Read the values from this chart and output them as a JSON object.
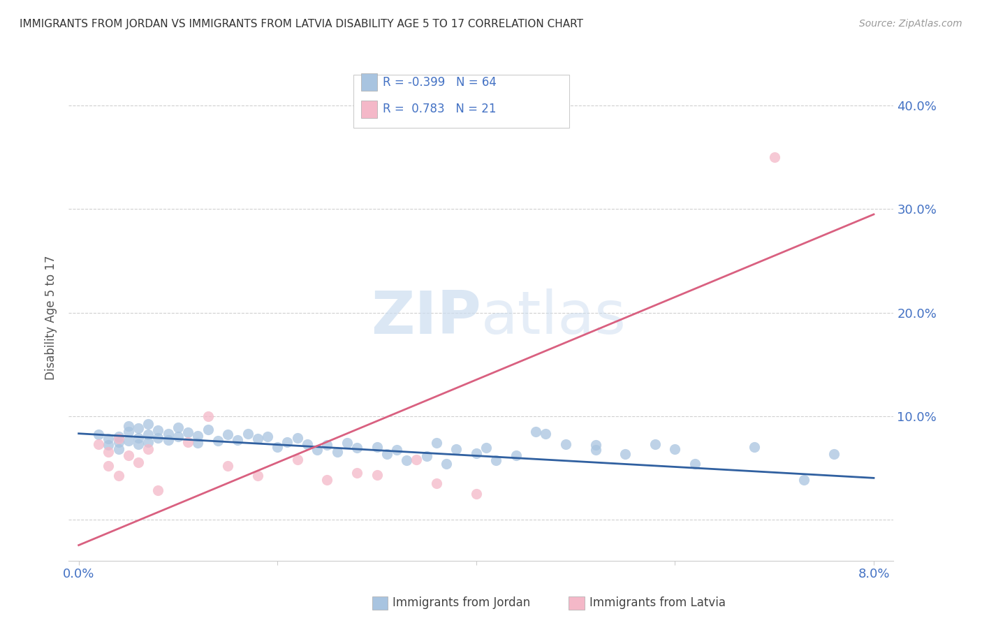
{
  "title": "IMMIGRANTS FROM JORDAN VS IMMIGRANTS FROM LATVIA DISABILITY AGE 5 TO 17 CORRELATION CHART",
  "source": "Source: ZipAtlas.com",
  "ylabel": "Disability Age 5 to 17",
  "legend_bottom_jordan": "Immigrants from Jordan",
  "legend_bottom_latvia": "Immigrants from Latvia",
  "jordan_color": "#a8c4e0",
  "latvia_color": "#f4b8c8",
  "jordan_line_color": "#3060a0",
  "latvia_line_color": "#d96080",
  "background_color": "#ffffff",
  "grid_color": "#d0d0d0",
  "title_color": "#333333",
  "axis_label_color": "#4472c4",
  "watermark_color": "#ccddf0",
  "jordan_scatter": [
    [
      0.002,
      0.082
    ],
    [
      0.003,
      0.078
    ],
    [
      0.003,
      0.072
    ],
    [
      0.004,
      0.075
    ],
    [
      0.004,
      0.08
    ],
    [
      0.004,
      0.068
    ],
    [
      0.005,
      0.09
    ],
    [
      0.005,
      0.076
    ],
    [
      0.005,
      0.085
    ],
    [
      0.006,
      0.079
    ],
    [
      0.006,
      0.073
    ],
    [
      0.006,
      0.088
    ],
    [
      0.007,
      0.082
    ],
    [
      0.007,
      0.092
    ],
    [
      0.007,
      0.075
    ],
    [
      0.008,
      0.086
    ],
    [
      0.008,
      0.079
    ],
    [
      0.009,
      0.083
    ],
    [
      0.009,
      0.077
    ],
    [
      0.01,
      0.089
    ],
    [
      0.01,
      0.08
    ],
    [
      0.011,
      0.084
    ],
    [
      0.012,
      0.081
    ],
    [
      0.012,
      0.074
    ],
    [
      0.013,
      0.087
    ],
    [
      0.014,
      0.076
    ],
    [
      0.015,
      0.082
    ],
    [
      0.016,
      0.077
    ],
    [
      0.017,
      0.083
    ],
    [
      0.018,
      0.078
    ],
    [
      0.019,
      0.08
    ],
    [
      0.02,
      0.07
    ],
    [
      0.021,
      0.075
    ],
    [
      0.022,
      0.079
    ],
    [
      0.023,
      0.073
    ],
    [
      0.024,
      0.067
    ],
    [
      0.025,
      0.072
    ],
    [
      0.026,
      0.065
    ],
    [
      0.027,
      0.074
    ],
    [
      0.028,
      0.069
    ],
    [
      0.03,
      0.07
    ],
    [
      0.031,
      0.063
    ],
    [
      0.032,
      0.067
    ],
    [
      0.033,
      0.057
    ],
    [
      0.035,
      0.061
    ],
    [
      0.036,
      0.074
    ],
    [
      0.037,
      0.054
    ],
    [
      0.038,
      0.068
    ],
    [
      0.04,
      0.064
    ],
    [
      0.041,
      0.069
    ],
    [
      0.042,
      0.057
    ],
    [
      0.044,
      0.062
    ],
    [
      0.046,
      0.085
    ],
    [
      0.047,
      0.083
    ],
    [
      0.049,
      0.073
    ],
    [
      0.052,
      0.072
    ],
    [
      0.052,
      0.067
    ],
    [
      0.055,
      0.063
    ],
    [
      0.058,
      0.073
    ],
    [
      0.06,
      0.068
    ],
    [
      0.062,
      0.054
    ],
    [
      0.068,
      0.07
    ],
    [
      0.073,
      0.038
    ],
    [
      0.076,
      0.063
    ]
  ],
  "latvia_scatter": [
    [
      0.002,
      0.073
    ],
    [
      0.003,
      0.065
    ],
    [
      0.003,
      0.052
    ],
    [
      0.004,
      0.078
    ],
    [
      0.004,
      0.042
    ],
    [
      0.005,
      0.062
    ],
    [
      0.006,
      0.055
    ],
    [
      0.007,
      0.068
    ],
    [
      0.008,
      0.028
    ],
    [
      0.011,
      0.075
    ],
    [
      0.013,
      0.1
    ],
    [
      0.015,
      0.052
    ],
    [
      0.018,
      0.042
    ],
    [
      0.022,
      0.058
    ],
    [
      0.025,
      0.038
    ],
    [
      0.028,
      0.045
    ],
    [
      0.03,
      0.043
    ],
    [
      0.034,
      0.058
    ],
    [
      0.036,
      0.035
    ],
    [
      0.07,
      0.35
    ],
    [
      0.04,
      0.025
    ]
  ],
  "jordan_line_x": [
    0.0,
    0.08
  ],
  "jordan_line_y": [
    0.083,
    0.04
  ],
  "latvia_line_x": [
    0.0,
    0.08
  ],
  "latvia_line_y": [
    -0.025,
    0.295
  ],
  "xlim": [
    -0.001,
    0.082
  ],
  "ylim": [
    -0.04,
    0.43
  ],
  "yticks": [
    0.0,
    0.1,
    0.2,
    0.3,
    0.4
  ],
  "ytick_labels": [
    "",
    "10.0%",
    "20.0%",
    "30.0%",
    "40.0%"
  ],
  "xticks": [
    0.0,
    0.02,
    0.04,
    0.06,
    0.08
  ],
  "xtick_labels": [
    "0.0%",
    "",
    "",
    "",
    "8.0%"
  ]
}
